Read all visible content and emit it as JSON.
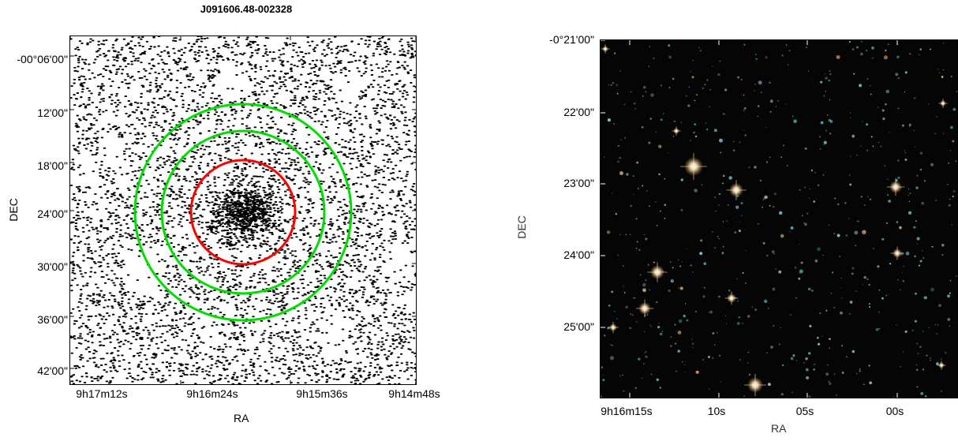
{
  "left_panel": {
    "title": "J091606.48-002328",
    "xlabel": "RA",
    "ylabel": "DEC",
    "xticks": [
      "9h17m12s",
      "9h16m24s",
      "9h15m36s",
      "9h14m48s"
    ],
    "yticks": [
      "-00°06'00\"",
      "12'00\"",
      "18'00\"",
      "24'00\"",
      "30'00\"",
      "36'00\"",
      "42'00\""
    ],
    "circles": [
      {
        "name": "inner",
        "color": "#ff0000"
      },
      {
        "name": "middle",
        "color": "#00dd00"
      },
      {
        "name": "outer",
        "color": "#00dd00"
      }
    ],
    "point_color": "#000000"
  },
  "right_panel": {
    "xlabel": "RA",
    "ylabel": "DEC",
    "xticks": [
      "9h16m15s",
      "10s",
      "05s",
      "00s"
    ],
    "yticks": [
      "-0°21'00\"",
      "22'00\"",
      "23'00\"",
      "24'00\"",
      "25'00\""
    ],
    "background_color": "#050505"
  }
}
